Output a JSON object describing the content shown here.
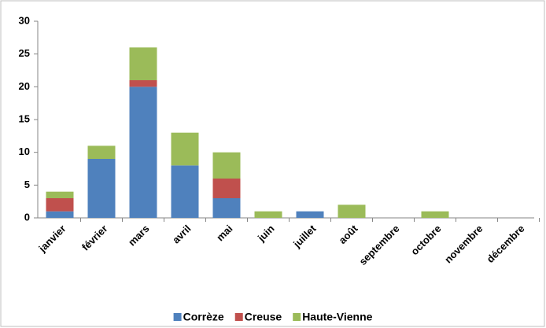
{
  "chart_data": {
    "type": "stacked_bar",
    "categories": [
      "janvier",
      "février",
      "mars",
      "avril",
      "mai",
      "juin",
      "juillet",
      "août",
      "septembre",
      "octobre",
      "novembre",
      "décembre"
    ],
    "series": [
      {
        "name": "Corrèze",
        "color": "#4f81bd",
        "values": [
          1,
          9,
          20,
          8,
          3,
          0,
          1,
          0,
          0,
          0,
          0,
          0
        ]
      },
      {
        "name": "Creuse",
        "color": "#c0504d",
        "values": [
          2,
          0,
          1,
          0,
          3,
          0,
          0,
          0,
          0,
          0,
          0,
          0
        ]
      },
      {
        "name": "Haute-Vienne",
        "color": "#9bbb59",
        "values": [
          1,
          2,
          5,
          5,
          4,
          1,
          0,
          2,
          0,
          1,
          0,
          0
        ]
      }
    ],
    "ylim": [
      0,
      30
    ],
    "yticks": [
      0,
      5,
      10,
      15,
      20,
      25,
      30
    ],
    "grid": false,
    "legend": "bottom"
  }
}
